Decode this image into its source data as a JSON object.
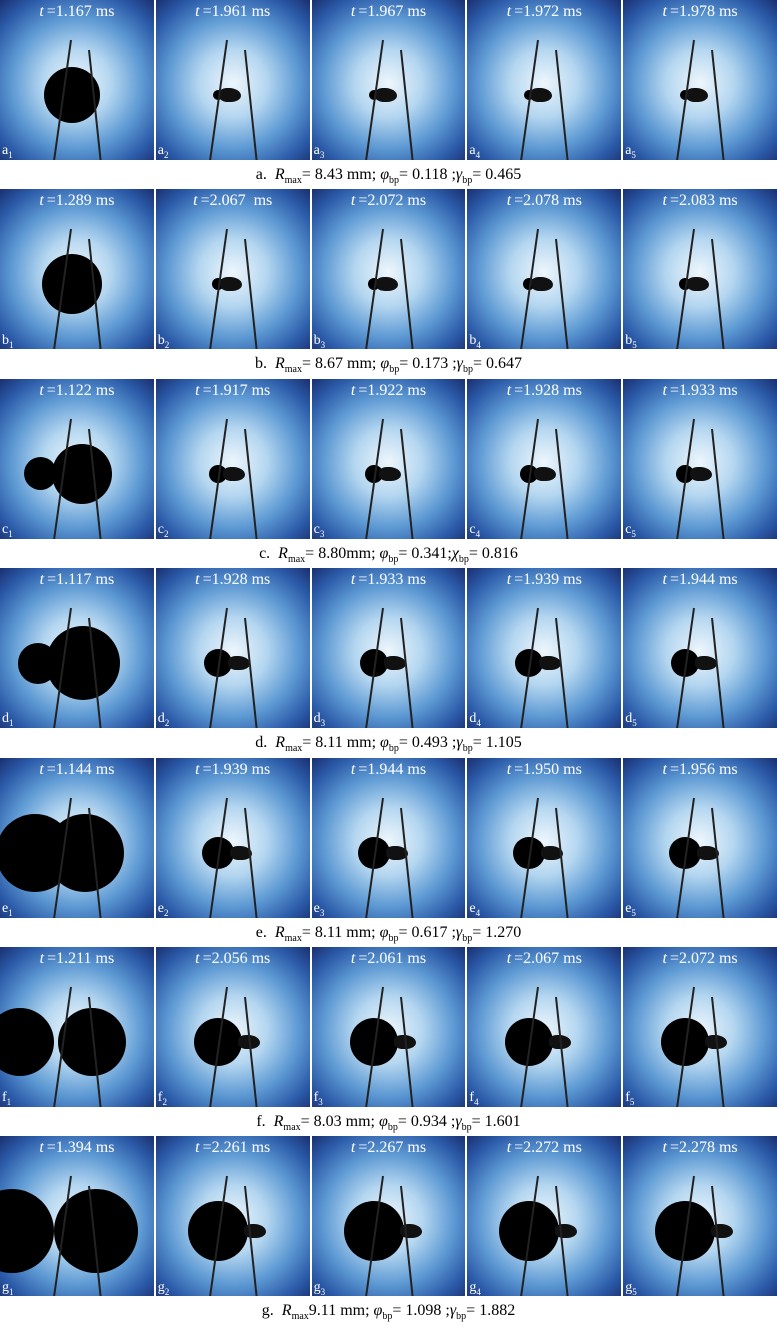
{
  "time_symbol": "t",
  "rows": [
    {
      "letter": "a",
      "frames": [
        "=1.167 ms",
        "=1.961 ms",
        "=1.967 ms",
        "=1.972 ms",
        "=1.978 ms"
      ],
      "caption": {
        "label": "a.",
        "r_symbol": "R",
        "r_sub": "max",
        "r_value": "= 8.43 mm;",
        "phi_symbol": "φ",
        "phi_sub": "bp",
        "phi_value": "= 0.118 ;",
        "gamma_symbol": "γ",
        "gamma_sub": "bp",
        "gamma_value": "= 0.465"
      }
    },
    {
      "letter": "b",
      "frames": [
        "=1.289 ms",
        "=2.067  ms",
        "=2.072 ms",
        "=2.078 ms",
        "=2.083 ms"
      ],
      "caption": {
        "label": "b.",
        "r_symbol": "R",
        "r_sub": "max",
        "r_value": "= 8.67 mm;",
        "phi_symbol": "φ",
        "phi_sub": "bp",
        "phi_value": "= 0.173 ;",
        "gamma_symbol": "γ",
        "gamma_sub": "bp",
        "gamma_value": "= 0.647"
      }
    },
    {
      "letter": "c",
      "frames": [
        "=1.122 ms",
        "=1.917 ms",
        "=1.922 ms",
        "=1.928 ms",
        "=1.933 ms"
      ],
      "caption": {
        "label": "c.",
        "r_symbol": "R",
        "r_sub": "max",
        "r_value": "= 8.80mm;",
        "phi_symbol": "φ",
        "phi_sub": "bp",
        "phi_value": "= 0.341;",
        "gamma_symbol": "χ",
        "gamma_sub": "bp",
        "gamma_value": "= 0.816"
      }
    },
    {
      "letter": "d",
      "frames": [
        "=1.117 ms",
        "=1.928 ms",
        "=1.933 ms",
        "=1.939 ms",
        "=1.944 ms"
      ],
      "caption": {
        "label": "d.",
        "r_symbol": "R",
        "r_sub": "max",
        "r_value": "= 8.11 mm;",
        "phi_symbol": "φ",
        "phi_sub": "bp",
        "phi_value": "= 0.493 ;",
        "gamma_symbol": "γ",
        "gamma_sub": "bp",
        "gamma_value": "= 1.105"
      }
    },
    {
      "letter": "e",
      "frames": [
        "=1.144 ms",
        "=1.939 ms",
        "=1.944 ms",
        "=1.950 ms",
        "=1.956 ms"
      ],
      "caption": {
        "label": "e.",
        "r_symbol": "R",
        "r_sub": "max",
        "r_value": "= 8.11 mm;",
        "phi_symbol": "φ",
        "phi_sub": "bp",
        "phi_value": "= 0.617 ;",
        "gamma_symbol": "γ",
        "gamma_sub": "bp",
        "gamma_value": "= 1.270"
      }
    },
    {
      "letter": "f",
      "frames": [
        "=1.211 ms",
        "=2.056 ms",
        "=2.061 ms",
        "=2.067 ms",
        "=2.072 ms"
      ],
      "caption": {
        "label": "f.",
        "r_symbol": "R",
        "r_sub": "max",
        "r_value": "= 8.03 mm;",
        "phi_symbol": "φ",
        "phi_sub": "bp",
        "phi_value": "= 0.934 ;",
        "gamma_symbol": "γ",
        "gamma_sub": "bp",
        "gamma_value": "= 1.601"
      }
    },
    {
      "letter": "g",
      "frames": [
        "=1.394 ms",
        "=2.261 ms",
        "=2.267 ms",
        "=2.272 ms",
        "=2.278 ms"
      ],
      "caption": {
        "label": "g.",
        "r_symbol": "R",
        "r_sub": "max",
        "r_value": "9.11 mm;",
        "phi_symbol": "φ",
        "phi_sub": "bp",
        "phi_value": "= 1.098 ;",
        "gamma_symbol": "γ",
        "gamma_sub": "bp",
        "gamma_value": "= 1.882"
      }
    }
  ],
  "frame_indices": [
    "1",
    "2",
    "3",
    "4",
    "5"
  ]
}
